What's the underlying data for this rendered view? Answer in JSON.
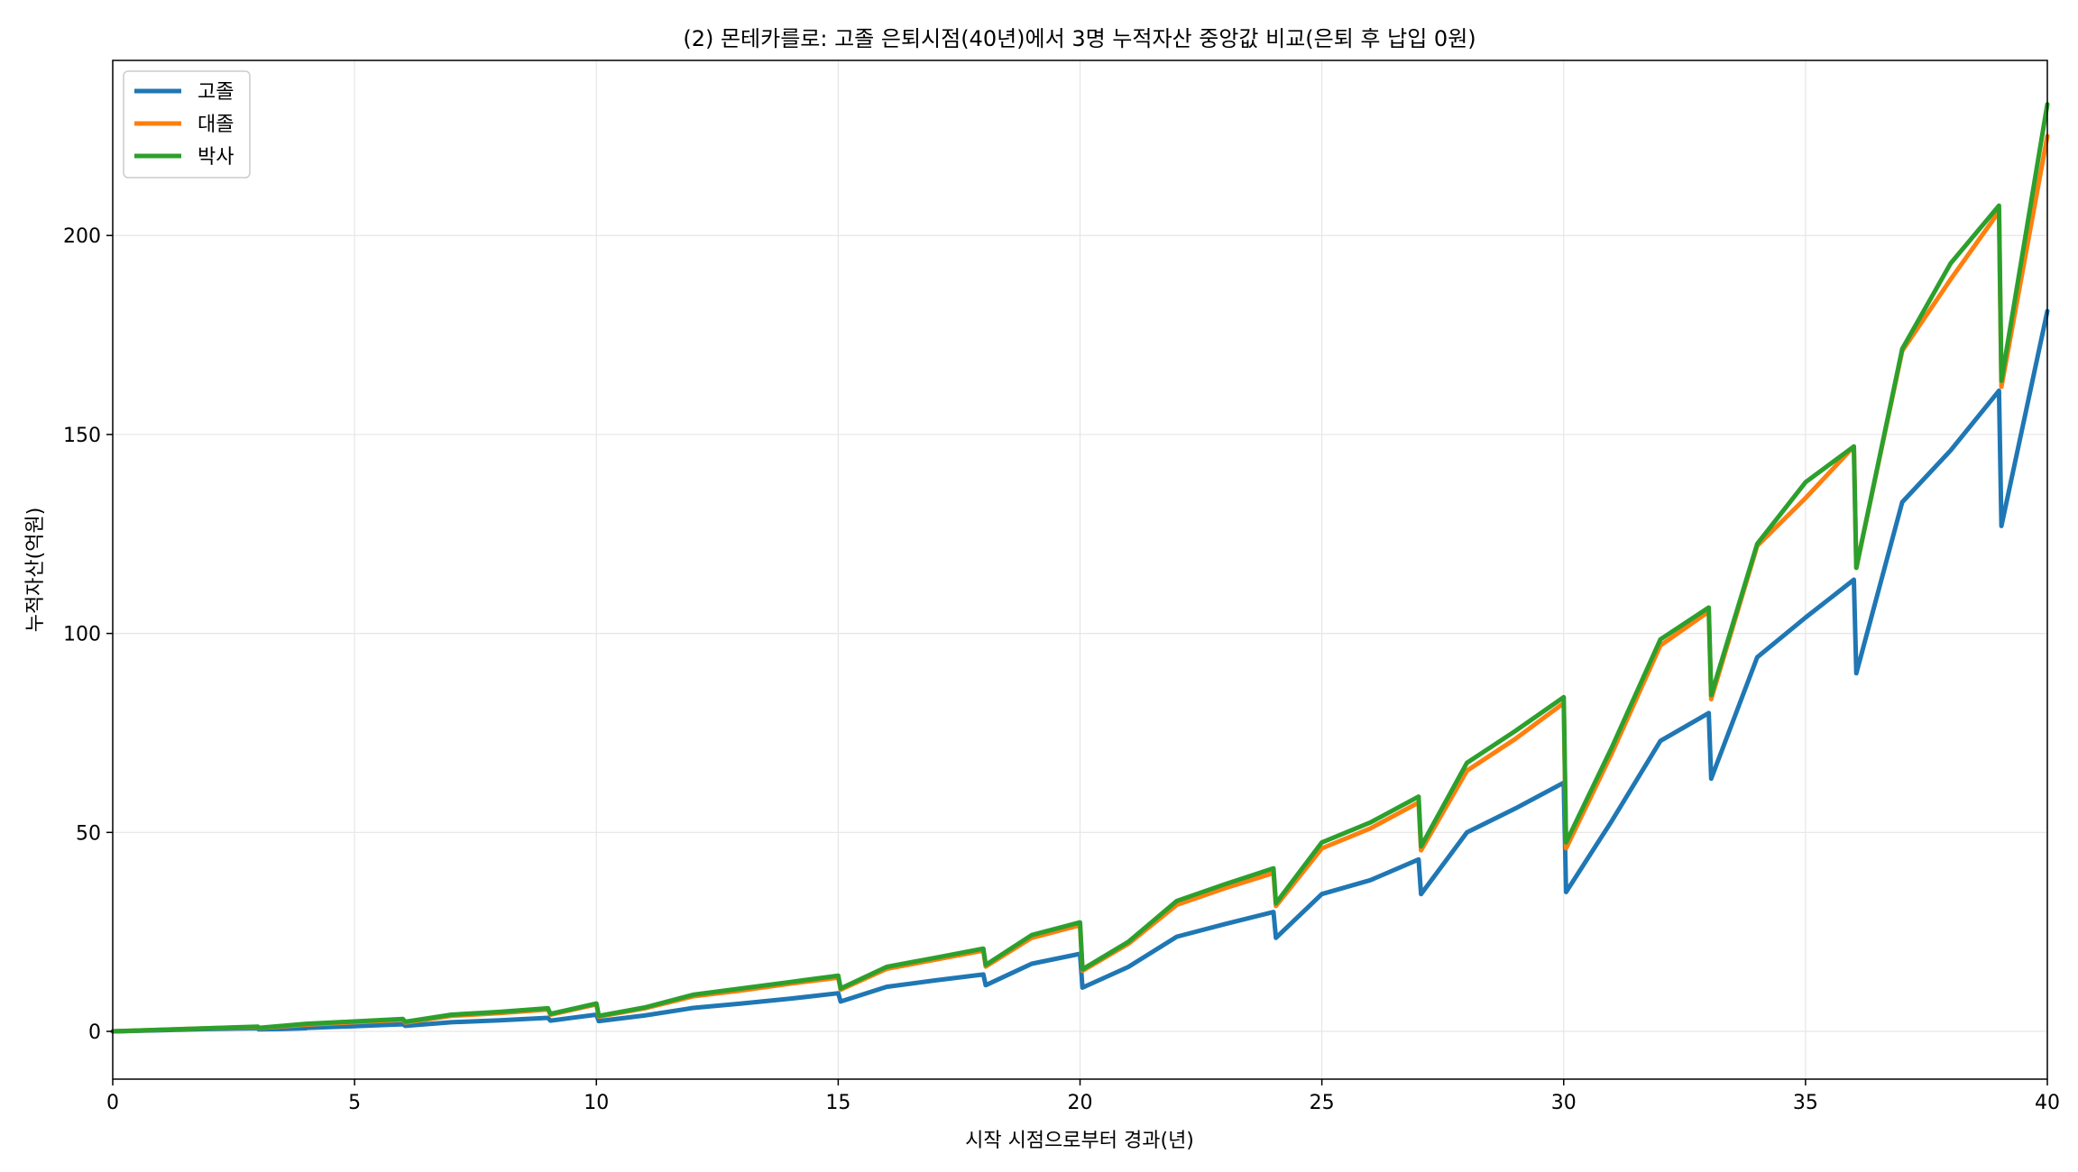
{
  "chart_data": {
    "type": "line",
    "title": "(2) 몬테카를로: 고졸 은퇴시점(40년)에서 3명 누적자산 중앙값 비교(은퇴 후 납입 0원)",
    "xlabel": "시작 시점으로부터 경과(년)",
    "ylabel": "누적자산(억원)",
    "xlim": [
      0,
      40
    ],
    "ylim": [
      -12,
      244
    ],
    "x_ticks": [
      0,
      5,
      10,
      15,
      20,
      25,
      30,
      35,
      40
    ],
    "y_ticks": [
      0,
      50,
      100,
      150,
      200
    ],
    "x_tick_labels": [
      "0",
      "5",
      "10",
      "15",
      "20",
      "25",
      "30",
      "35",
      "40"
    ],
    "y_tick_labels": [
      "0",
      "50",
      "100",
      "150",
      "200"
    ],
    "grid": true,
    "legend_position": "top-left",
    "series": [
      {
        "name": "고졸",
        "color": "#1f77b4",
        "x": [
          0,
          1,
          2,
          3,
          3.02,
          3.5,
          4,
          4.02,
          5,
          6,
          6.05,
          7,
          8,
          9,
          9.05,
          10,
          10.05,
          11,
          12,
          13,
          14,
          15,
          15.05,
          16,
          17,
          18,
          18.05,
          19,
          20,
          20.05,
          21,
          22,
          23,
          24,
          24.05,
          25,
          26,
          27,
          27.05,
          28,
          29,
          30,
          30.05,
          31,
          32,
          33,
          33.05,
          34,
          35,
          36,
          36.05,
          37,
          38,
          39,
          39.05,
          40
        ],
        "values": [
          0,
          0.3,
          0.6,
          0.8,
          0.5,
          0.6,
          0.8,
          0.9,
          1.3,
          1.8,
          1.4,
          2.3,
          2.8,
          3.4,
          2.7,
          4.2,
          2.6,
          4.0,
          5.9,
          7.0,
          8.2,
          9.6,
          7.5,
          11.2,
          12.8,
          14.3,
          11.6,
          17.0,
          19.5,
          11.0,
          16.2,
          23.8,
          27.0,
          30.0,
          23.5,
          34.5,
          38.0,
          43.2,
          34.5,
          50.0,
          56.0,
          62.5,
          35.0,
          53.0,
          73.0,
          80.0,
          63.5,
          94.0,
          104.0,
          113.5,
          90.0,
          133.0,
          146.0,
          161.0,
          127.0,
          181.0
        ]
      },
      {
        "name": "대졸",
        "color": "#ff7f0e",
        "x": [
          0,
          1,
          2,
          3,
          3.02,
          4,
          5,
          6,
          6.05,
          7,
          8,
          9,
          9.05,
          10,
          10.05,
          11,
          12,
          13,
          14,
          15,
          15.05,
          16,
          17,
          18,
          18.05,
          19,
          20,
          20.05,
          21,
          22,
          23,
          24,
          24.05,
          25,
          26,
          27,
          27.05,
          28,
          29,
          30,
          30.05,
          31,
          32,
          33,
          33.05,
          34,
          35,
          36,
          36.05,
          37,
          38,
          39,
          39.05,
          40
        ],
        "values": [
          0,
          0.4,
          0.8,
          1.1,
          0.8,
          1.7,
          2.3,
          2.9,
          2.2,
          3.9,
          4.6,
          5.5,
          4.2,
          6.8,
          3.7,
          5.8,
          8.8,
          10.3,
          12.0,
          13.5,
          10.5,
          15.7,
          18.0,
          20.3,
          16.3,
          23.5,
          26.7,
          15.2,
          22.0,
          31.8,
          36.0,
          39.8,
          31.5,
          46.0,
          51.0,
          57.5,
          45.5,
          65.5,
          73.5,
          82.5,
          46.0,
          70.0,
          97.0,
          105.5,
          83.5,
          122.0,
          134.0,
          147.0,
          116.5,
          171.0,
          189.0,
          206.0,
          162.0,
          225.0
        ]
      },
      {
        "name": "박사",
        "color": "#2ca02c",
        "x": [
          0,
          1,
          2,
          3,
          3.02,
          4,
          5,
          6,
          6.05,
          7,
          8,
          9,
          9.05,
          10,
          10.05,
          11,
          12,
          13,
          14,
          15,
          15.05,
          16,
          17,
          18,
          18.05,
          19,
          20,
          20.05,
          21,
          22,
          23,
          24,
          24.05,
          25,
          26,
          27,
          27.05,
          28,
          29,
          30,
          30.05,
          31,
          32,
          33,
          33.05,
          34,
          35,
          36,
          36.05,
          37,
          38,
          39,
          39.05,
          40
        ],
        "values": [
          0,
          0.4,
          0.8,
          1.2,
          0.9,
          1.9,
          2.5,
          3.1,
          2.4,
          4.2,
          4.9,
          5.8,
          4.4,
          7.0,
          3.9,
          6.0,
          9.2,
          10.8,
          12.4,
          14.0,
          10.8,
          16.2,
          18.5,
          20.8,
          16.7,
          24.2,
          27.4,
          15.6,
          22.5,
          32.8,
          37.0,
          41.0,
          32.2,
          47.5,
          52.5,
          59.0,
          46.5,
          67.5,
          75.5,
          84.0,
          47.5,
          71.5,
          98.5,
          106.5,
          84.5,
          122.5,
          138.0,
          147.0,
          116.5,
          171.5,
          193.0,
          207.5,
          163.5,
          233.0
        ]
      }
    ]
  }
}
